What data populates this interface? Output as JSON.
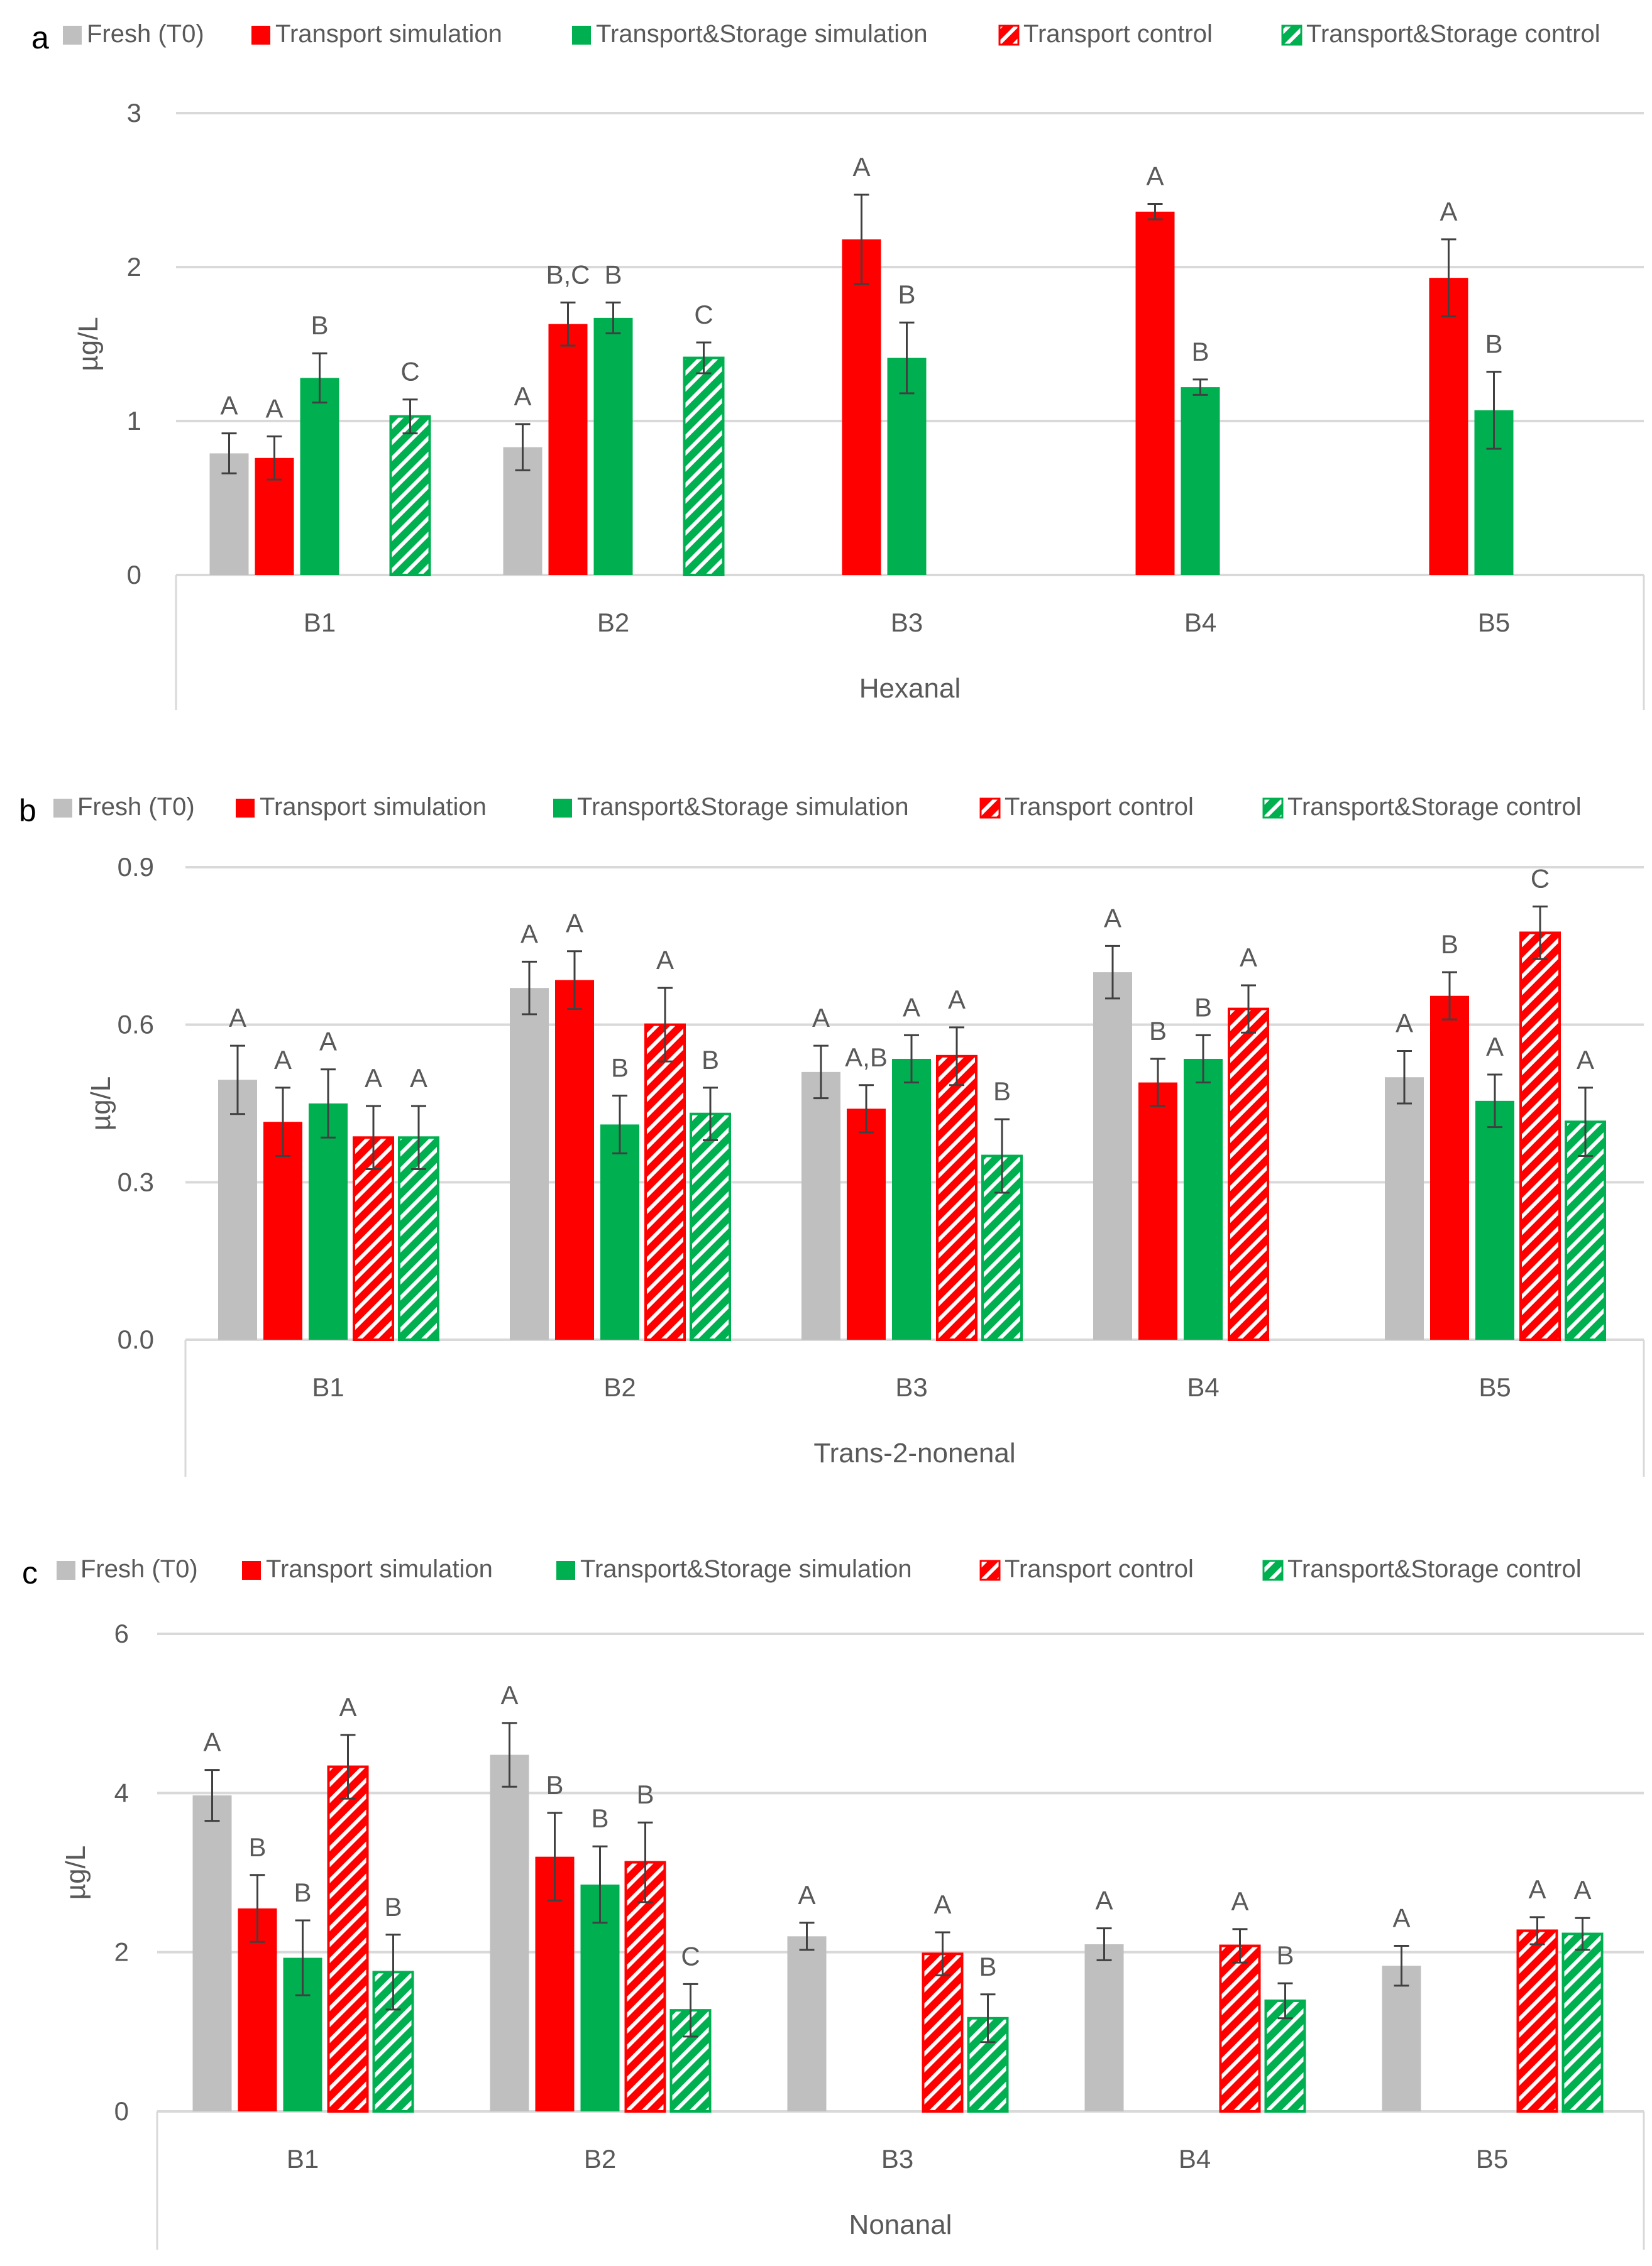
{
  "colors": {
    "fresh": "#bfbfbf",
    "transport": "#ff0000",
    "storage": "#00b050",
    "grid": "#d9d9d9",
    "axis_text": "#595959",
    "error": "#404040"
  },
  "legend": [
    "Fresh (T0)",
    "Transport simulation",
    "Transport&Storage simulation",
    "Transport control",
    "Transport&Storage control"
  ],
  "chart_data": [
    {
      "type": "bar",
      "panel_label": "a",
      "title": "",
      "xlabel": "Hexanal",
      "ylabel": "µg/L",
      "ylim": [
        0,
        3
      ],
      "yticks": [
        "0",
        "1",
        "2",
        "3"
      ],
      "ytick_values": [
        0,
        1,
        2,
        3
      ],
      "grid": true,
      "legend_position": "top",
      "categories": [
        "B1",
        "B2",
        "B3",
        "B4",
        "B5"
      ],
      "series": [
        {
          "name": "Fresh (T0)",
          "values": [
            0.79,
            0.83,
            null,
            null,
            null
          ],
          "errors": [
            0.13,
            0.15,
            null,
            null,
            null
          ],
          "letters": [
            "A",
            "A",
            "",
            "",
            ""
          ]
        },
        {
          "name": "Transport simulation",
          "values": [
            0.76,
            1.63,
            2.18,
            2.36,
            1.93
          ],
          "errors": [
            0.14,
            0.14,
            0.29,
            0.05,
            0.25
          ],
          "letters": [
            "A",
            "B,C",
            "A",
            "A",
            "A"
          ]
        },
        {
          "name": "Transport&Storage simulation",
          "values": [
            1.28,
            1.67,
            1.41,
            1.22,
            1.07
          ],
          "errors": [
            0.16,
            0.1,
            0.23,
            0.05,
            0.25
          ],
          "letters": [
            "B",
            "B",
            "B",
            "B",
            "B"
          ]
        },
        {
          "name": "Transport control",
          "values": [
            null,
            null,
            null,
            null,
            null
          ],
          "errors": [
            null,
            null,
            null,
            null,
            null
          ],
          "letters": [
            "",
            "",
            "",
            "",
            ""
          ]
        },
        {
          "name": "Transport&Storage control",
          "values": [
            1.03,
            1.41,
            null,
            null,
            null
          ],
          "errors": [
            0.11,
            0.1,
            null,
            null,
            null
          ],
          "letters": [
            "C",
            "C",
            "",
            "",
            ""
          ]
        }
      ]
    },
    {
      "type": "bar",
      "panel_label": "b",
      "title": "",
      "xlabel": "Trans-2-nonenal",
      "ylabel": "µg/L",
      "ylim": [
        0,
        0.9
      ],
      "yticks": [
        "0.0",
        "0.3",
        "0.6",
        "0.9"
      ],
      "ytick_values": [
        0,
        0.3,
        0.6,
        0.9
      ],
      "grid": true,
      "legend_position": "top",
      "categories": [
        "B1",
        "B2",
        "B3",
        "B4",
        "B5"
      ],
      "series": [
        {
          "name": "Fresh (T0)",
          "values": [
            0.495,
            0.67,
            0.51,
            0.7,
            0.5
          ],
          "errors": [
            0.065,
            0.05,
            0.05,
            0.05,
            0.05
          ],
          "letters": [
            "A",
            "A",
            "A",
            "A",
            "A"
          ]
        },
        {
          "name": "Transport simulation",
          "values": [
            0.415,
            0.685,
            0.44,
            0.49,
            0.655
          ],
          "errors": [
            0.065,
            0.055,
            0.045,
            0.045,
            0.045
          ],
          "letters": [
            "A",
            "A",
            "A,B",
            "B",
            "B"
          ]
        },
        {
          "name": "Transport&Storage simulation",
          "values": [
            0.45,
            0.41,
            0.535,
            0.535,
            0.455
          ],
          "errors": [
            0.065,
            0.055,
            0.045,
            0.045,
            0.05
          ],
          "letters": [
            "A",
            "B",
            "A",
            "B",
            "A"
          ]
        },
        {
          "name": "Transport control",
          "values": [
            0.385,
            0.6,
            0.54,
            0.63,
            0.775
          ],
          "errors": [
            0.06,
            0.07,
            0.055,
            0.045,
            0.05
          ],
          "letters": [
            "A",
            "A",
            "A",
            "A",
            "C"
          ]
        },
        {
          "name": "Transport&Storage control",
          "values": [
            0.385,
            0.43,
            0.35,
            null,
            0.415
          ],
          "errors": [
            0.06,
            0.05,
            0.07,
            null,
            0.065
          ],
          "letters": [
            "A",
            "B",
            "B",
            "",
            "A"
          ]
        }
      ]
    },
    {
      "type": "bar",
      "panel_label": "c",
      "title": "",
      "xlabel": "Nonanal",
      "ylabel": "µg/L",
      "ylim": [
        0,
        6
      ],
      "yticks": [
        "0",
        "2",
        "4",
        "6"
      ],
      "ytick_values": [
        0,
        2,
        4,
        6
      ],
      "grid": true,
      "legend_position": "top",
      "categories": [
        "B1",
        "B2",
        "B3",
        "B4",
        "B5"
      ],
      "series": [
        {
          "name": "Fresh (T0)",
          "values": [
            3.97,
            4.48,
            2.2,
            2.1,
            1.83
          ],
          "errors": [
            0.32,
            0.4,
            0.17,
            0.2,
            0.25
          ],
          "letters": [
            "A",
            "A",
            "A",
            "A",
            "A"
          ]
        },
        {
          "name": "Transport simulation",
          "values": [
            2.55,
            3.2,
            null,
            null,
            null
          ],
          "errors": [
            0.42,
            0.55,
            null,
            null,
            null
          ],
          "letters": [
            "B",
            "B",
            "",
            "",
            ""
          ]
        },
        {
          "name": "Transport&Storage simulation",
          "values": [
            1.93,
            2.85,
            null,
            null,
            null
          ],
          "errors": [
            0.47,
            0.48,
            null,
            null,
            null
          ],
          "letters": [
            "B",
            "B",
            "",
            "",
            ""
          ]
        },
        {
          "name": "Transport control",
          "values": [
            4.33,
            3.13,
            1.98,
            2.08,
            2.27
          ],
          "errors": [
            0.4,
            0.5,
            0.27,
            0.21,
            0.17
          ],
          "letters": [
            "A",
            "B",
            "A",
            "A",
            "A"
          ]
        },
        {
          "name": "Transport&Storage control",
          "values": [
            1.75,
            1.27,
            1.17,
            1.39,
            2.23
          ],
          "errors": [
            0.47,
            0.33,
            0.3,
            0.22,
            0.2
          ],
          "letters": [
            "B",
            "C",
            "B",
            "B",
            "A"
          ]
        }
      ]
    }
  ]
}
